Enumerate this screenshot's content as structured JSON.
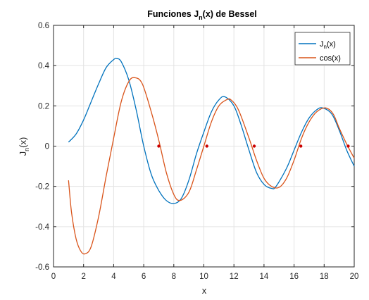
{
  "chart_data": {
    "type": "line",
    "title": "Funciones J",
    "title_sub": "n",
    "title_tail": "(x) de Bessel",
    "xlabel": "x",
    "ylabel_main": "J",
    "ylabel_sub": "n",
    "ylabel_tail": "(x)",
    "xlim": [
      0,
      20
    ],
    "ylim": [
      -0.6,
      0.6
    ],
    "xticks": [
      0,
      2,
      4,
      6,
      8,
      10,
      12,
      14,
      16,
      18,
      20
    ],
    "yticks": [
      -0.6,
      -0.4,
      -0.2,
      0,
      0.2,
      0.4,
      0.6
    ],
    "grid": true,
    "legend_position": "top-right",
    "series": [
      {
        "name_main": "J",
        "name_sub": "n",
        "name_tail": "(x)",
        "color": "#0072BD",
        "x": [
          1.0,
          1.5,
          2.0,
          2.5,
          3.0,
          3.5,
          4.0,
          4.2,
          4.5,
          5.0,
          5.5,
          6.0,
          6.5,
          7.0,
          7.5,
          8.0,
          8.5,
          9.0,
          9.5,
          10.0,
          10.5,
          11.0,
          11.4,
          12.0,
          12.5,
          13.0,
          13.5,
          14.0,
          14.5,
          14.8,
          15.5,
          16.0,
          16.5,
          17.0,
          17.5,
          17.9,
          18.5,
          19.0,
          19.5,
          20.0
        ],
        "y": [
          0.02,
          0.06,
          0.13,
          0.22,
          0.31,
          0.39,
          0.43,
          0.435,
          0.42,
          0.33,
          0.18,
          0.0,
          -0.14,
          -0.22,
          -0.27,
          -0.285,
          -0.26,
          -0.17,
          -0.04,
          0.07,
          0.17,
          0.23,
          0.245,
          0.2,
          0.1,
          -0.02,
          -0.13,
          -0.19,
          -0.21,
          -0.2,
          -0.11,
          -0.02,
          0.07,
          0.14,
          0.18,
          0.19,
          0.16,
          0.08,
          -0.02,
          -0.1
        ]
      },
      {
        "name": "cos(x)",
        "color": "#D95319",
        "x": [
          1.0,
          1.2,
          1.5,
          1.8,
          2.1,
          2.5,
          3.0,
          3.5,
          4.0,
          4.5,
          5.0,
          5.4,
          5.9,
          6.5,
          7.0,
          7.5,
          8.0,
          8.4,
          9.0,
          9.5,
          10.0,
          10.5,
          11.0,
          11.5,
          11.8,
          12.3,
          13.0,
          13.5,
          14.0,
          14.5,
          15.0,
          15.5,
          16.0,
          16.5,
          17.0,
          17.5,
          18.1,
          18.6,
          19.0,
          19.5,
          20.0
        ],
        "y": [
          -0.17,
          -0.33,
          -0.46,
          -0.52,
          -0.535,
          -0.5,
          -0.35,
          -0.15,
          0.04,
          0.22,
          0.32,
          0.34,
          0.31,
          0.17,
          0.03,
          -0.13,
          -0.24,
          -0.27,
          -0.23,
          -0.12,
          0.0,
          0.12,
          0.2,
          0.23,
          0.23,
          0.18,
          0.04,
          -0.07,
          -0.16,
          -0.2,
          -0.205,
          -0.16,
          -0.07,
          0.04,
          0.12,
          0.17,
          0.19,
          0.16,
          0.09,
          0.01,
          -0.06
        ]
      }
    ],
    "markers": {
      "color": "#cc0000",
      "x": [
        7.0,
        10.2,
        13.35,
        16.45,
        19.6
      ],
      "y": [
        0,
        0,
        0,
        0,
        0
      ]
    }
  }
}
